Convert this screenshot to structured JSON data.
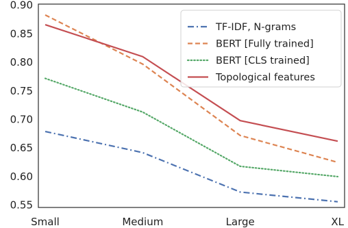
{
  "chart_data": {
    "type": "line",
    "categories": [
      "Small",
      "Medium",
      "Large",
      "XL"
    ],
    "series": [
      {
        "name": "TF-IDF, N-grams",
        "values": [
          0.679,
          0.642,
          0.573,
          0.556
        ],
        "color": "#4c72b0",
        "style": "dashdot"
      },
      {
        "name": "BERT [Fully trained]",
        "values": [
          0.883,
          0.797,
          0.672,
          0.625
        ],
        "color": "#dd8452",
        "style": "dashed"
      },
      {
        "name": "BERT [CLS trained]",
        "values": [
          0.772,
          0.713,
          0.618,
          0.6
        ],
        "color": "#55a868",
        "style": "dotted"
      },
      {
        "name": "Topological features",
        "values": [
          0.866,
          0.81,
          0.698,
          0.662
        ],
        "color": "#c44e52",
        "style": "solid"
      }
    ],
    "yticks": [
      "0.55",
      "0.60",
      "0.65",
      "0.70",
      "0.75",
      "0.80",
      "0.85",
      "0.90"
    ],
    "ylim": [
      0.546,
      0.902
    ],
    "title": "",
    "xlabel": "",
    "ylabel": "",
    "grid": false,
    "legend_position": "top-right"
  }
}
